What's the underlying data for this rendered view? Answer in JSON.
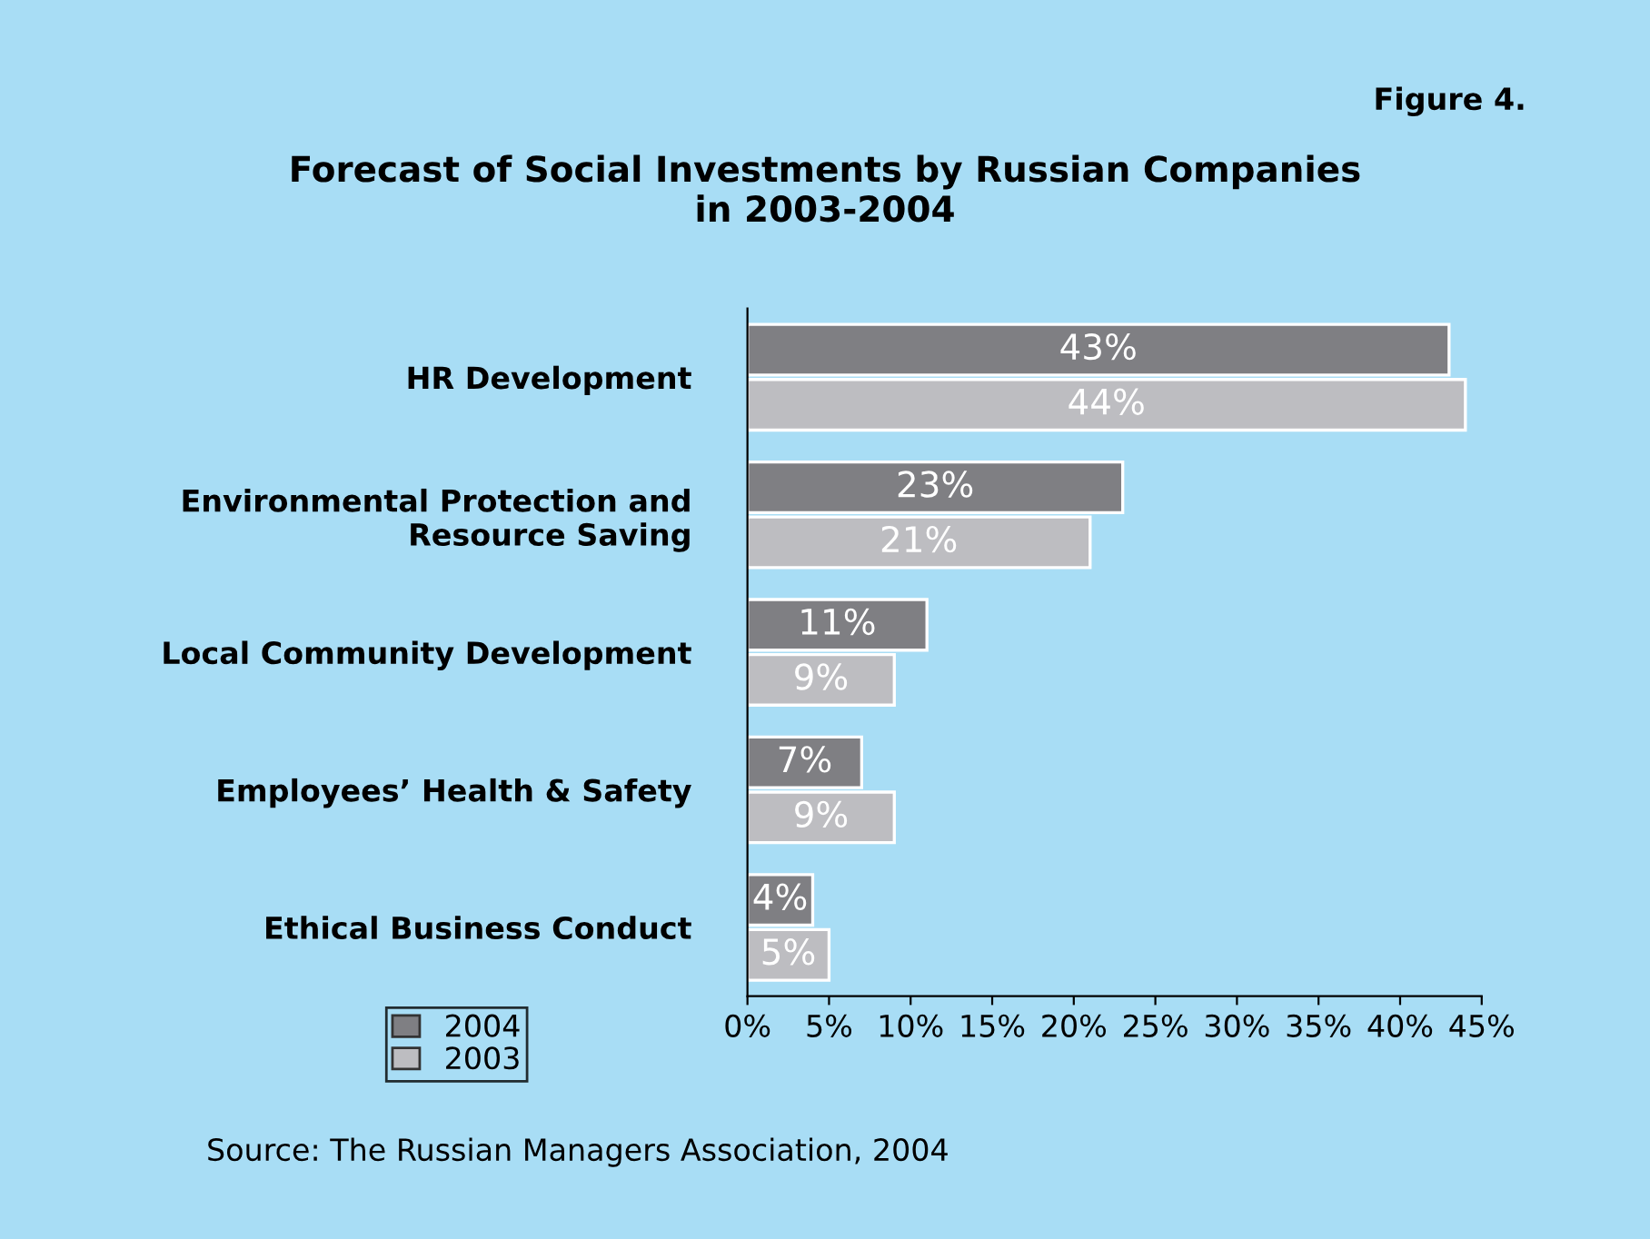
{
  "chart_data": {
    "type": "bar",
    "orientation": "horizontal",
    "title": "Forecast of Social Investments by Russian Companies\nin 2003-2004",
    "annotations": [
      "Figure 4.",
      "Source: The Russian Managers Association, 2004"
    ],
    "categories": [
      "HR Development",
      "Environmental Protection and\nResource Saving",
      "Local Community Development",
      "Employees’ Health & Safety",
      "Ethical Business Conduct"
    ],
    "series": [
      {
        "name": "2004",
        "color": "#7f7f83",
        "values": [
          43,
          23,
          11,
          7,
          4
        ],
        "value_labels": [
          "43%",
          "23%",
          "11%",
          "7%",
          "4%"
        ]
      },
      {
        "name": "2003",
        "color": "#bdbdc1",
        "values": [
          44,
          21,
          9,
          9,
          5
        ],
        "value_labels": [
          "44%",
          "21%",
          "9%",
          "9%",
          "5%"
        ]
      }
    ],
    "xlim": [
      0,
      45
    ],
    "xticks": [
      {
        "value": 0,
        "label": "0%"
      },
      {
        "value": 5,
        "label": "5%"
      },
      {
        "value": 10,
        "label": "10%"
      },
      {
        "value": 15,
        "label": "15%"
      },
      {
        "value": 20,
        "label": "20%"
      },
      {
        "value": 25,
        "label": "25%"
      },
      {
        "value": 30,
        "label": "30%"
      },
      {
        "value": 35,
        "label": "35%"
      },
      {
        "value": 40,
        "label": "40%"
      },
      {
        "value": 45,
        "label": "45%"
      }
    ],
    "grid": false,
    "legend": "bottom left"
  }
}
